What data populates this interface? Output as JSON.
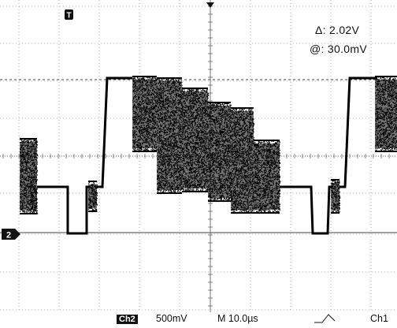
{
  "markers": {
    "trigger_label": "T",
    "channel_ref_label": "2"
  },
  "cursor_readout": {
    "delta_label": "Δ:",
    "delta_value": "2.02V",
    "at_label": "@:",
    "at_value": "30.0mV"
  },
  "status_bar": {
    "channel_badge": "Ch2",
    "volts_per_div": "500mV",
    "timebase": "M 10.0µs",
    "trigger_source": "Ch1"
  },
  "colors": {
    "trace": "#000000",
    "grid": "#777777",
    "background": "#ffffff",
    "cursor_line": "#444444"
  }
}
